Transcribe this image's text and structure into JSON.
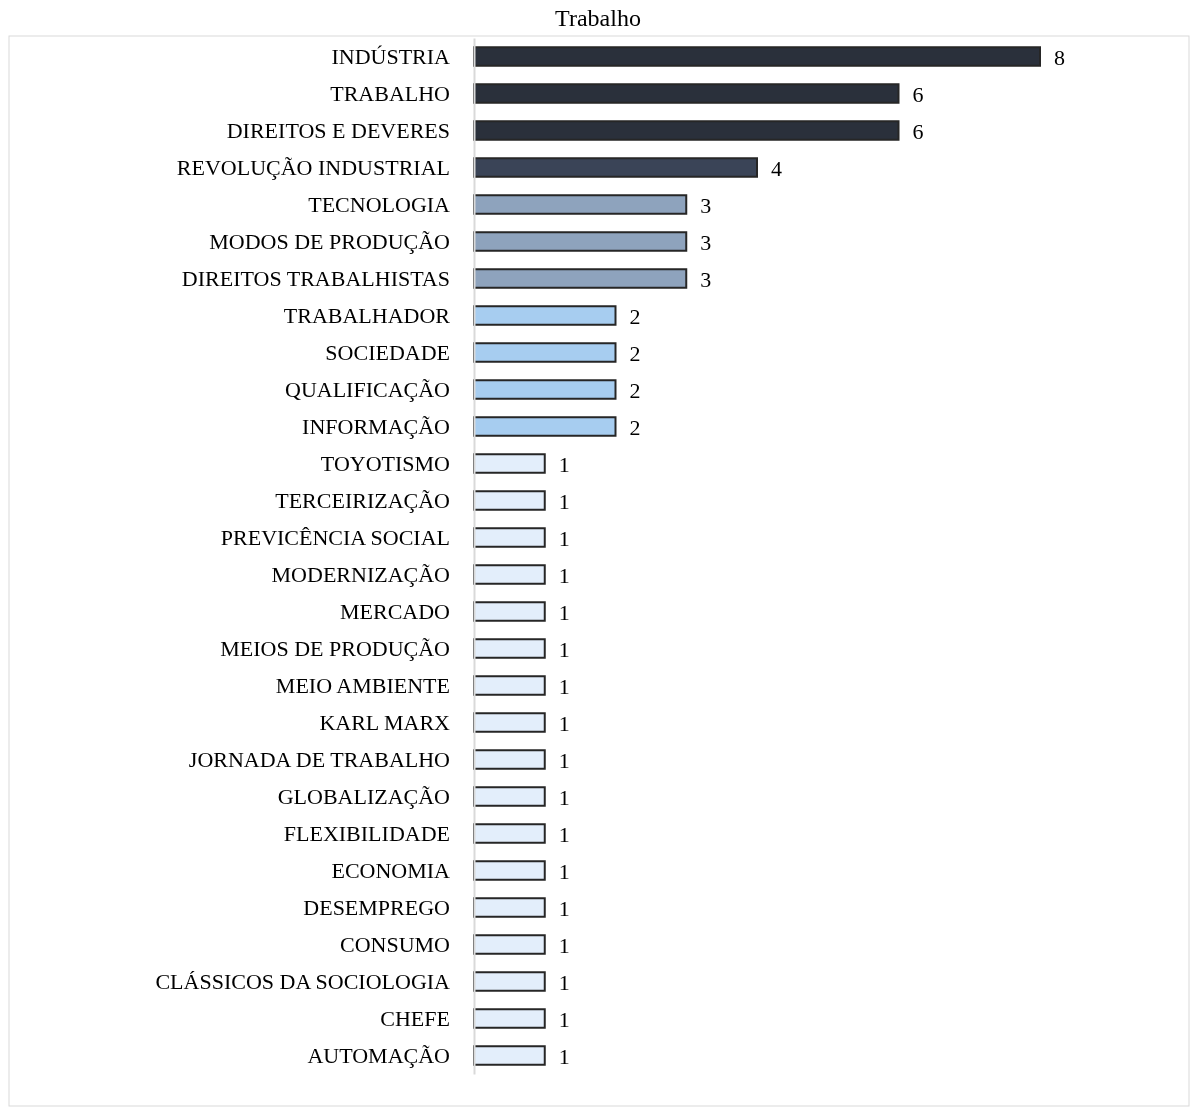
{
  "chart_data": {
    "type": "bar",
    "orientation": "horizontal",
    "title": "Trabalho",
    "data_labels": true,
    "categories": [
      "INDÚSTRIA",
      "TRABALHO",
      "DIREITOS E DEVERES",
      "REVOLUÇÃO INDUSTRIAL",
      "TECNOLOGIA",
      "MODOS DE PRODUÇÃO",
      "DIREITOS TRABALHISTAS",
      "TRABALHADOR",
      "SOCIEDADE",
      "QUALIFICAÇÃO",
      "INFORMAÇÃO",
      "TOYOTISMO",
      "TERCEIRIZAÇÃO",
      "PREVICÊNCIA SOCIAL",
      "MODERNIZAÇÃO",
      "MERCADO",
      "MEIOS DE PRODUÇÃO",
      "MEIO AMBIENTE",
      "KARL MARX",
      "JORNADA DE TRABALHO",
      "GLOBALIZAÇÃO",
      "FLEXIBILIDADE",
      "ECONOMIA",
      "DESEMPREGO",
      "CONSUMO",
      "CLÁSSICOS DA SOCIOLOGIA",
      "CHEFE",
      "AUTOMAÇÃO"
    ],
    "values": [
      8,
      6,
      6,
      4,
      3,
      3,
      3,
      2,
      2,
      2,
      2,
      1,
      1,
      1,
      1,
      1,
      1,
      1,
      1,
      1,
      1,
      1,
      1,
      1,
      1,
      1,
      1,
      1
    ],
    "colors": [
      "#2a303b",
      "#2a303b",
      "#2a303b",
      "#3a4457",
      "#8ea3bd",
      "#8ea3bd",
      "#8ea3bd",
      "#a7cdf0",
      "#a7cdf0",
      "#a7cdf0",
      "#a7cdf0",
      "#e3eefb",
      "#e3eefb",
      "#e3eefb",
      "#e3eefb",
      "#e3eefb",
      "#e3eefb",
      "#e3eefb",
      "#e3eefb",
      "#e3eefb",
      "#e3eefb",
      "#e3eefb",
      "#e3eefb",
      "#e3eefb",
      "#e3eefb",
      "#e3eefb",
      "#e3eefb",
      "#e3eefb"
    ]
  }
}
